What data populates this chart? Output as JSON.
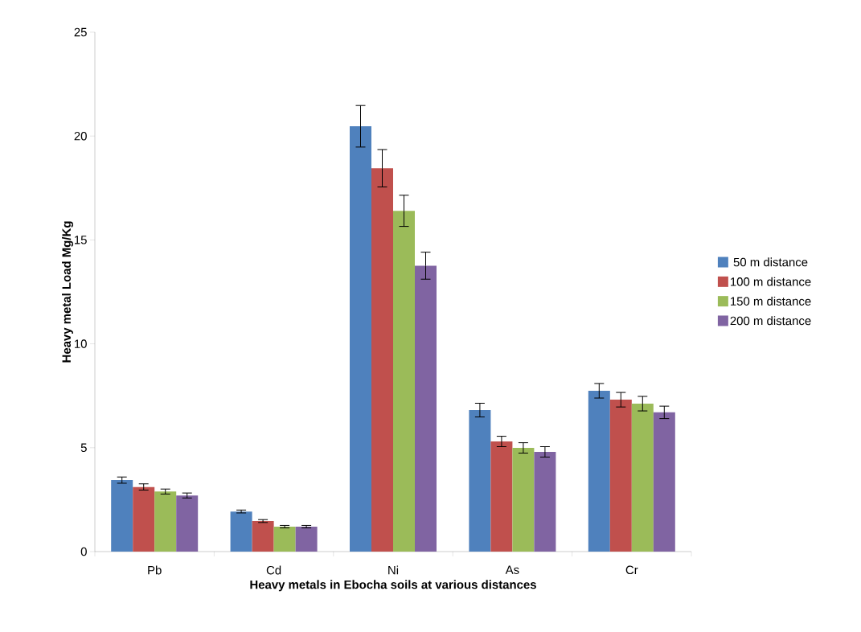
{
  "chart_data": {
    "type": "bar",
    "xlabel": "Heavy metals in Ebocha soils at various distances",
    "ylabel": "Heavy metal Load Mg/Kg",
    "categories": [
      "Pb",
      "Cd",
      "Ni",
      "As",
      "Cr"
    ],
    "series": [
      {
        "name": "50 m distance",
        "color": "#4f81bd",
        "values": [
          3.44,
          1.93,
          20.47,
          6.81,
          7.74
        ],
        "errors": [
          0.15,
          0.07,
          1.0,
          0.33,
          0.35
        ]
      },
      {
        "name": "100 m distance",
        "color": "#c0504d",
        "values": [
          3.11,
          1.47,
          18.45,
          5.3,
          7.31
        ],
        "errors": [
          0.15,
          0.07,
          0.9,
          0.25,
          0.35
        ]
      },
      {
        "name": "150 m distance",
        "color": "#9bbb59",
        "values": [
          2.89,
          1.2,
          16.4,
          4.99,
          7.12
        ],
        "errors": [
          0.12,
          0.06,
          0.75,
          0.25,
          0.35
        ]
      },
      {
        "name": "200 m distance",
        "color": "#8064a2",
        "values": [
          2.7,
          1.2,
          13.76,
          4.8,
          6.7
        ],
        "errors": [
          0.12,
          0.06,
          0.65,
          0.25,
          0.3
        ]
      }
    ],
    "ylim": [
      0,
      25
    ],
    "yticks": [
      0,
      5,
      10,
      15,
      20,
      25
    ],
    "grid": false,
    "legend": "right"
  }
}
